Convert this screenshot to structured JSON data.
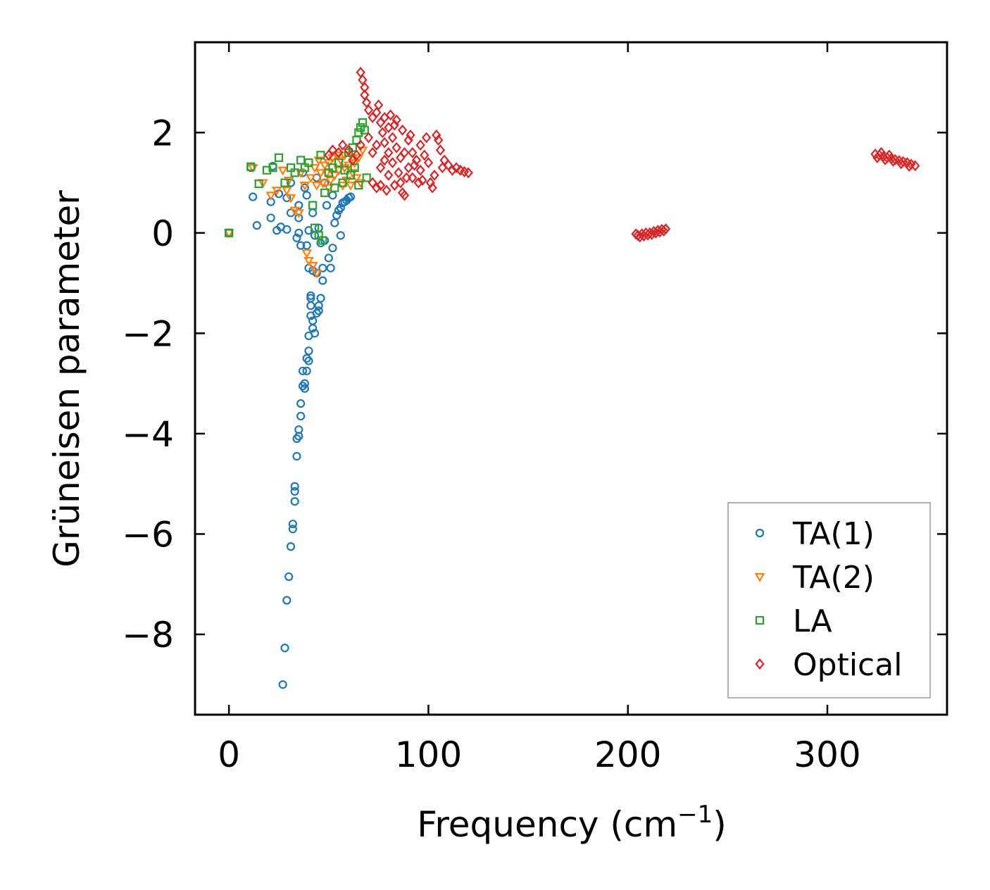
{
  "chart_data": {
    "type": "scatter",
    "title": "",
    "xlabel": "Frequency (cm",
    "xlabel_superscript": "−1",
    "xlabel_suffix": ")",
    "ylabel": "Grüneisen parameter",
    "xlim": [
      -17,
      360
    ],
    "ylim": [
      -9.6,
      3.8
    ],
    "xticks": [
      0,
      100,
      200,
      300
    ],
    "xtick_labels": [
      "0",
      "100",
      "200",
      "300"
    ],
    "yticks": [
      -8,
      -6,
      -4,
      -2,
      0,
      2
    ],
    "ytick_labels": [
      "−8",
      "−6",
      "−4",
      "−2",
      "0",
      "2"
    ],
    "legend_position": "bottom-right",
    "series": [
      {
        "name": "TA(1)",
        "marker": "circle",
        "color": "#1f77b4",
        "points": [
          [
            0,
            0
          ],
          [
            11,
            1.3
          ],
          [
            12,
            0.72
          ],
          [
            14,
            0.15
          ],
          [
            21,
            0.3
          ],
          [
            21,
            0.62
          ],
          [
            22,
            1.33
          ],
          [
            24,
            0.05
          ],
          [
            25,
            0.78
          ],
          [
            26,
            0.12
          ],
          [
            27,
            -9.0
          ],
          [
            28,
            -8.27
          ],
          [
            29,
            -7.32
          ],
          [
            29,
            0.07
          ],
          [
            29,
            0.7
          ],
          [
            30,
            -6.85
          ],
          [
            31,
            -6.25
          ],
          [
            31,
            0.4
          ],
          [
            31,
            1.0
          ],
          [
            32,
            -5.9
          ],
          [
            32,
            -5.8
          ],
          [
            33,
            -5.35
          ],
          [
            33,
            -5.15
          ],
          [
            33,
            -5.05
          ],
          [
            34,
            -4.45
          ],
          [
            34,
            -4.1
          ],
          [
            35,
            -4.05
          ],
          [
            35,
            -3.92
          ],
          [
            35,
            0.3
          ],
          [
            35,
            0.55
          ],
          [
            36,
            -3.65
          ],
          [
            36,
            -3.4
          ],
          [
            37,
            -2.75
          ],
          [
            37,
            -3.05
          ],
          [
            38,
            -3.0
          ],
          [
            38,
            -3.1
          ],
          [
            39,
            -2.5
          ],
          [
            39,
            -2.75
          ],
          [
            39,
            -0.25
          ],
          [
            39,
            0.75
          ],
          [
            40,
            -2.05
          ],
          [
            40,
            -2.35
          ],
          [
            40,
            -2.55
          ],
          [
            40,
            -0.7
          ],
          [
            41,
            -1.65
          ],
          [
            41,
            -1.45
          ],
          [
            41,
            -1.3
          ],
          [
            41,
            -1.25
          ],
          [
            42,
            -1.9
          ],
          [
            42,
            -1.75
          ],
          [
            42,
            -0.75
          ],
          [
            43,
            -2.0
          ],
          [
            43,
            -0.05
          ],
          [
            44,
            -1.6
          ],
          [
            44,
            -0.8
          ],
          [
            45,
            -1.55
          ],
          [
            45,
            -1.45
          ],
          [
            46,
            -1.3
          ],
          [
            46,
            -0.2
          ],
          [
            47,
            -0.95
          ],
          [
            47,
            -0.7
          ],
          [
            48,
            -0.15
          ],
          [
            50,
            -0.5
          ],
          [
            51,
            -0.7
          ],
          [
            52,
            -0.3
          ],
          [
            53,
            0.2
          ],
          [
            54,
            0.35
          ],
          [
            55,
            0.45
          ],
          [
            56,
            0.5
          ],
          [
            57,
            0.6
          ],
          [
            58,
            0.62
          ],
          [
            59,
            0.65
          ],
          [
            60,
            0.7
          ],
          [
            61,
            0.72
          ],
          [
            56,
            -0.05
          ],
          [
            38,
            0.9
          ],
          [
            37,
            1.2
          ],
          [
            44,
            1.1
          ],
          [
            48,
            1.0
          ],
          [
            35,
            0.0
          ],
          [
            42,
            0.4
          ],
          [
            45,
            0.1
          ],
          [
            49,
            0.55
          ],
          [
            52,
            0.75
          ],
          [
            34,
            -0.1
          ],
          [
            36,
            -0.25
          ],
          [
            40,
            0.05
          ]
        ]
      },
      {
        "name": "TA(2)",
        "marker": "triangle-down",
        "color": "#ff7f0e",
        "points": [
          [
            0,
            0
          ],
          [
            12,
            1.3
          ],
          [
            17,
            1.0
          ],
          [
            21,
            0.75
          ],
          [
            24,
            0.85
          ],
          [
            27,
            1.25
          ],
          [
            29,
            0.85
          ],
          [
            30,
            1.05
          ],
          [
            31,
            0.7
          ],
          [
            33,
            0.45
          ],
          [
            35,
            0.4
          ],
          [
            36,
            1.2
          ],
          [
            38,
            0.95
          ],
          [
            39,
            -0.4
          ],
          [
            40,
            -0.55
          ],
          [
            42,
            -0.65
          ],
          [
            44,
            -0.8
          ],
          [
            46,
            1.2
          ],
          [
            48,
            1.35
          ],
          [
            50,
            1.4
          ],
          [
            52,
            1.5
          ],
          [
            54,
            1.55
          ],
          [
            56,
            1.45
          ],
          [
            58,
            1.3
          ],
          [
            60,
            1.35
          ],
          [
            62,
            1.2
          ],
          [
            64,
            1.1
          ],
          [
            44,
            0.95
          ],
          [
            47,
            1.0
          ],
          [
            50,
            0.9
          ],
          [
            53,
            1.15
          ],
          [
            55,
            1.25
          ],
          [
            57,
            0.95
          ],
          [
            59,
            1.05
          ],
          [
            61,
            0.95
          ],
          [
            63,
            1.4
          ],
          [
            65,
            1.5
          ],
          [
            67,
            1.65
          ],
          [
            66,
            1.0
          ],
          [
            41,
            1.1
          ],
          [
            43,
            1.3
          ],
          [
            45,
            1.45
          ],
          [
            49,
            1.2
          ],
          [
            51,
            1.05
          ],
          [
            58,
            1.55
          ],
          [
            62,
            1.5
          ]
        ]
      },
      {
        "name": "LA",
        "marker": "square",
        "color": "#2ca02c",
        "points": [
          [
            0,
            0
          ],
          [
            11,
            1.32
          ],
          [
            15,
            0.98
          ],
          [
            19,
            1.25
          ],
          [
            22,
            1.3
          ],
          [
            25,
            1.5
          ],
          [
            28,
            1.0
          ],
          [
            31,
            1.3
          ],
          [
            33,
            1.2
          ],
          [
            36,
            1.45
          ],
          [
            38,
            1.3
          ],
          [
            40,
            1.4
          ],
          [
            42,
            0.55
          ],
          [
            43,
            0.1
          ],
          [
            45,
            -0.05
          ],
          [
            46,
            1.55
          ],
          [
            47,
            -0.15
          ],
          [
            48,
            0.8
          ],
          [
            50,
            1.2
          ],
          [
            52,
            1.3
          ],
          [
            55,
            1.4
          ],
          [
            58,
            1.25
          ],
          [
            60,
            1.6
          ],
          [
            62,
            1.7
          ],
          [
            64,
            1.85
          ],
          [
            65,
            2.0
          ],
          [
            66,
            2.1
          ],
          [
            67,
            2.2
          ],
          [
            68,
            2.05
          ],
          [
            69,
            1.1
          ],
          [
            65,
            0.95
          ],
          [
            63,
            1.3
          ],
          [
            61,
            1.15
          ],
          [
            57,
            1.0
          ],
          [
            53,
            0.9
          ]
        ]
      },
      {
        "name": "Optical",
        "marker": "diamond",
        "color": "#d62728",
        "points": [
          [
            66,
            3.2
          ],
          [
            67,
            3.05
          ],
          [
            68,
            2.9
          ],
          [
            68,
            2.75
          ],
          [
            69,
            2.6
          ],
          [
            70,
            2.45
          ],
          [
            72,
            2.3
          ],
          [
            74,
            2.4
          ],
          [
            75,
            2.55
          ],
          [
            76,
            2.2
          ],
          [
            77,
            2.0
          ],
          [
            78,
            1.8
          ],
          [
            78,
            2.3
          ],
          [
            80,
            2.1
          ],
          [
            80,
            1.6
          ],
          [
            82,
            1.4
          ],
          [
            82,
            1.9
          ],
          [
            84,
            1.7
          ],
          [
            84,
            2.25
          ],
          [
            85,
            1.2
          ],
          [
            86,
            1.5
          ],
          [
            86,
            1.0
          ],
          [
            87,
            0.8
          ],
          [
            88,
            0.75
          ],
          [
            88,
            1.6
          ],
          [
            90,
            1.3
          ],
          [
            90,
            1.85
          ],
          [
            92,
            1.1
          ],
          [
            92,
            1.6
          ],
          [
            94,
            1.45
          ],
          [
            95,
            1.0
          ],
          [
            96,
            1.25
          ],
          [
            96,
            1.75
          ],
          [
            98,
            1.55
          ],
          [
            99,
            1.9
          ],
          [
            100,
            1.4
          ],
          [
            101,
            1.0
          ],
          [
            102,
            0.9
          ],
          [
            104,
            1.95
          ],
          [
            105,
            1.85
          ],
          [
            106,
            1.65
          ],
          [
            108,
            1.45
          ],
          [
            110,
            1.35
          ],
          [
            112,
            1.25
          ],
          [
            114,
            1.3
          ],
          [
            116,
            1.25
          ],
          [
            118,
            1.22
          ],
          [
            120,
            1.2
          ],
          [
            70,
            1.9
          ],
          [
            72,
            1.6
          ],
          [
            74,
            1.75
          ],
          [
            76,
            1.3
          ],
          [
            78,
            1.45
          ],
          [
            80,
            1.15
          ],
          [
            60,
            1.65
          ],
          [
            62,
            1.45
          ],
          [
            55,
            1.6
          ],
          [
            50,
            1.55
          ],
          [
            52,
            1.65
          ],
          [
            57,
            1.75
          ],
          [
            64,
            1.55
          ],
          [
            66,
            1.75
          ],
          [
            72,
            1.0
          ],
          [
            74,
            0.9
          ],
          [
            76,
            0.95
          ],
          [
            79,
            0.85
          ],
          [
            83,
            0.95
          ],
          [
            89,
            1.1
          ],
          [
            93,
            1.35
          ],
          [
            97,
            1.05
          ],
          [
            103,
            1.15
          ],
          [
            107,
            1.3
          ],
          [
            81,
            2.35
          ],
          [
            83,
            2.15
          ],
          [
            87,
            2.05
          ],
          [
            91,
            1.95
          ],
          [
            205,
            -0.05
          ],
          [
            207,
            -0.02
          ],
          [
            209,
            0.0
          ],
          [
            211,
            0.0
          ],
          [
            213,
            0.03
          ],
          [
            215,
            0.05
          ],
          [
            217,
            0.07
          ],
          [
            219,
            0.08
          ],
          [
            206,
            -0.08
          ],
          [
            208,
            -0.06
          ],
          [
            210,
            -0.04
          ],
          [
            212,
            -0.03
          ],
          [
            214,
            0.0
          ],
          [
            216,
            0.02
          ],
          [
            218,
            0.04
          ],
          [
            204,
            -0.02
          ],
          [
            324,
            1.57
          ],
          [
            326,
            1.55
          ],
          [
            328,
            1.52
          ],
          [
            330,
            1.5
          ],
          [
            332,
            1.48
          ],
          [
            334,
            1.46
          ],
          [
            336,
            1.44
          ],
          [
            338,
            1.42
          ],
          [
            340,
            1.4
          ],
          [
            342,
            1.37
          ],
          [
            344,
            1.34
          ],
          [
            325,
            1.5
          ],
          [
            329,
            1.46
          ],
          [
            333,
            1.43
          ],
          [
            337,
            1.38
          ],
          [
            341,
            1.33
          ],
          [
            327,
            1.6
          ],
          [
            331,
            1.55
          ]
        ]
      }
    ]
  }
}
